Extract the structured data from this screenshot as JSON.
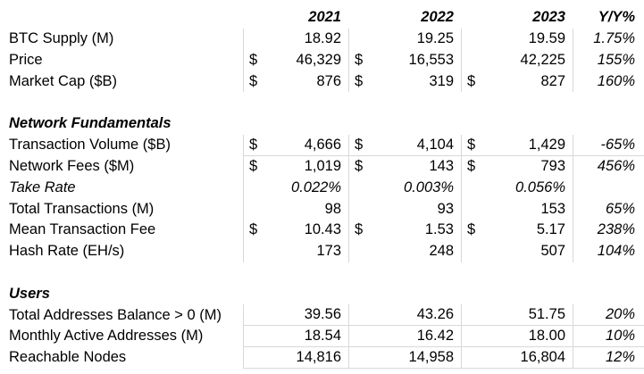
{
  "colors": {
    "background": "#ffffff",
    "text": "#000000",
    "gridline": "#d8d8d8"
  },
  "chart_data": {
    "type": "table",
    "title": "",
    "columns": [
      "",
      "2021",
      "2022",
      "2023",
      "Y/Y%"
    ],
    "layout": {
      "grid": "partial light-gray cell borders on numeric columns",
      "value_align": "right",
      "currency_symbol_align": "left"
    },
    "rows": [
      {
        "kind": "data",
        "label": "BTC Supply (M)",
        "cells": [
          {
            "cur": "",
            "val": "18.92"
          },
          {
            "cur": "",
            "val": "19.25"
          },
          {
            "cur": "",
            "val": "19.59"
          }
        ],
        "yoy": "1.75%"
      },
      {
        "kind": "data",
        "label": "Price",
        "cells": [
          {
            "cur": "$",
            "val": "46,329"
          },
          {
            "cur": "$",
            "val": "16,553"
          },
          {
            "cur": "",
            "val": "42,225"
          }
        ],
        "yoy": "155%"
      },
      {
        "kind": "data",
        "label": "Market Cap ($B)",
        "cells": [
          {
            "cur": "$",
            "val": "876"
          },
          {
            "cur": "$",
            "val": "319"
          },
          {
            "cur": "$",
            "val": "827"
          }
        ],
        "yoy": "160%"
      },
      {
        "kind": "blank"
      },
      {
        "kind": "section",
        "label": "Network Fundamentals"
      },
      {
        "kind": "data",
        "label": "Transaction Volume ($B)",
        "cells": [
          {
            "cur": "$",
            "val": "4,666"
          },
          {
            "cur": "$",
            "val": "4,104"
          },
          {
            "cur": "$",
            "val": "1,429"
          }
        ],
        "yoy": "-65%"
      },
      {
        "kind": "data",
        "label": "Network Fees ($M)",
        "cells": [
          {
            "cur": "$",
            "val": "1,019"
          },
          {
            "cur": "$",
            "val": "143"
          },
          {
            "cur": "$",
            "val": "793"
          }
        ],
        "yoy": "456%"
      },
      {
        "kind": "data",
        "label": "Take Rate",
        "cells": [
          {
            "cur": "",
            "val": "0.022%"
          },
          {
            "cur": "",
            "val": "0.003%"
          },
          {
            "cur": "",
            "val": "0.056%"
          }
        ],
        "yoy": ""
      },
      {
        "kind": "data",
        "label": "Total Transactions (M)",
        "cells": [
          {
            "cur": "",
            "val": "98"
          },
          {
            "cur": "",
            "val": "93"
          },
          {
            "cur": "",
            "val": "153"
          }
        ],
        "yoy": "65%"
      },
      {
        "kind": "data",
        "label": "Mean Transaction Fee",
        "cells": [
          {
            "cur": "$",
            "val": "10.43"
          },
          {
            "cur": "$",
            "val": "1.53"
          },
          {
            "cur": "$",
            "val": "5.17"
          }
        ],
        "yoy": "238%"
      },
      {
        "kind": "data",
        "label": "Hash Rate (EH/s)",
        "cells": [
          {
            "cur": "",
            "val": "173"
          },
          {
            "cur": "",
            "val": "248"
          },
          {
            "cur": "",
            "val": "507"
          }
        ],
        "yoy": "104%"
      },
      {
        "kind": "blank"
      },
      {
        "kind": "section",
        "label": "Users"
      },
      {
        "kind": "data",
        "label": "Total Addresses Balance > 0 (M)",
        "cells": [
          {
            "cur": "",
            "val": "39.56"
          },
          {
            "cur": "",
            "val": "43.26"
          },
          {
            "cur": "",
            "val": "51.75"
          }
        ],
        "yoy": "20%"
      },
      {
        "kind": "data",
        "label": "Monthly Active Addresses (M)",
        "cells": [
          {
            "cur": "",
            "val": "18.54"
          },
          {
            "cur": "",
            "val": "16.42"
          },
          {
            "cur": "",
            "val": "18.00"
          }
        ],
        "yoy": "10%"
      },
      {
        "kind": "data",
        "label": "Reachable Nodes",
        "cells": [
          {
            "cur": "",
            "val": "14,816"
          },
          {
            "cur": "",
            "val": "14,958"
          },
          {
            "cur": "",
            "val": "16,804"
          }
        ],
        "yoy": "12%"
      }
    ]
  }
}
